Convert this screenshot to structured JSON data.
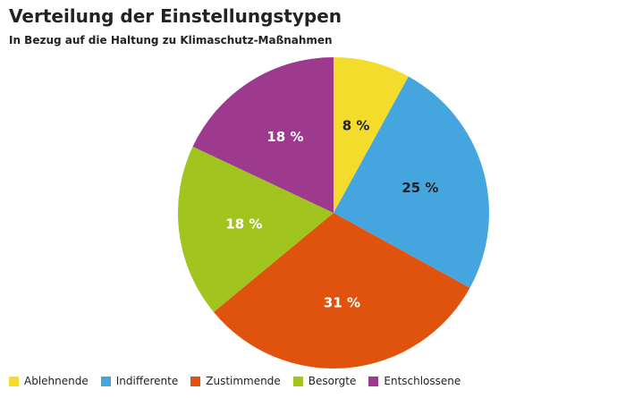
{
  "chart_data": {
    "type": "pie",
    "title": "Verteilung der Einstellungstypen",
    "subtitle": "In Bezug auf die Haltung zu Klimaschutz-Maßnahmen",
    "slices": [
      {
        "name": "Ablehnende",
        "value": 8,
        "label": "8 %",
        "color": "#f4dc2c",
        "label_color": "#222222"
      },
      {
        "name": "Indifferente",
        "value": 25,
        "label": "25 %",
        "color": "#45a6df",
        "label_color": "#222222"
      },
      {
        "name": "Zustimmende",
        "value": 31,
        "label": "31 %",
        "color": "#e0530e",
        "label_color": "#ffffff"
      },
      {
        "name": "Besorgte",
        "value": 18,
        "label": "18 %",
        "color": "#a2c41e",
        "label_color": "#ffffff"
      },
      {
        "name": "Entschlossene",
        "value": 18,
        "label": "18 %",
        "color": "#9d3a8d",
        "label_color": "#ffffff"
      }
    ],
    "legend_position": "bottom-left"
  }
}
